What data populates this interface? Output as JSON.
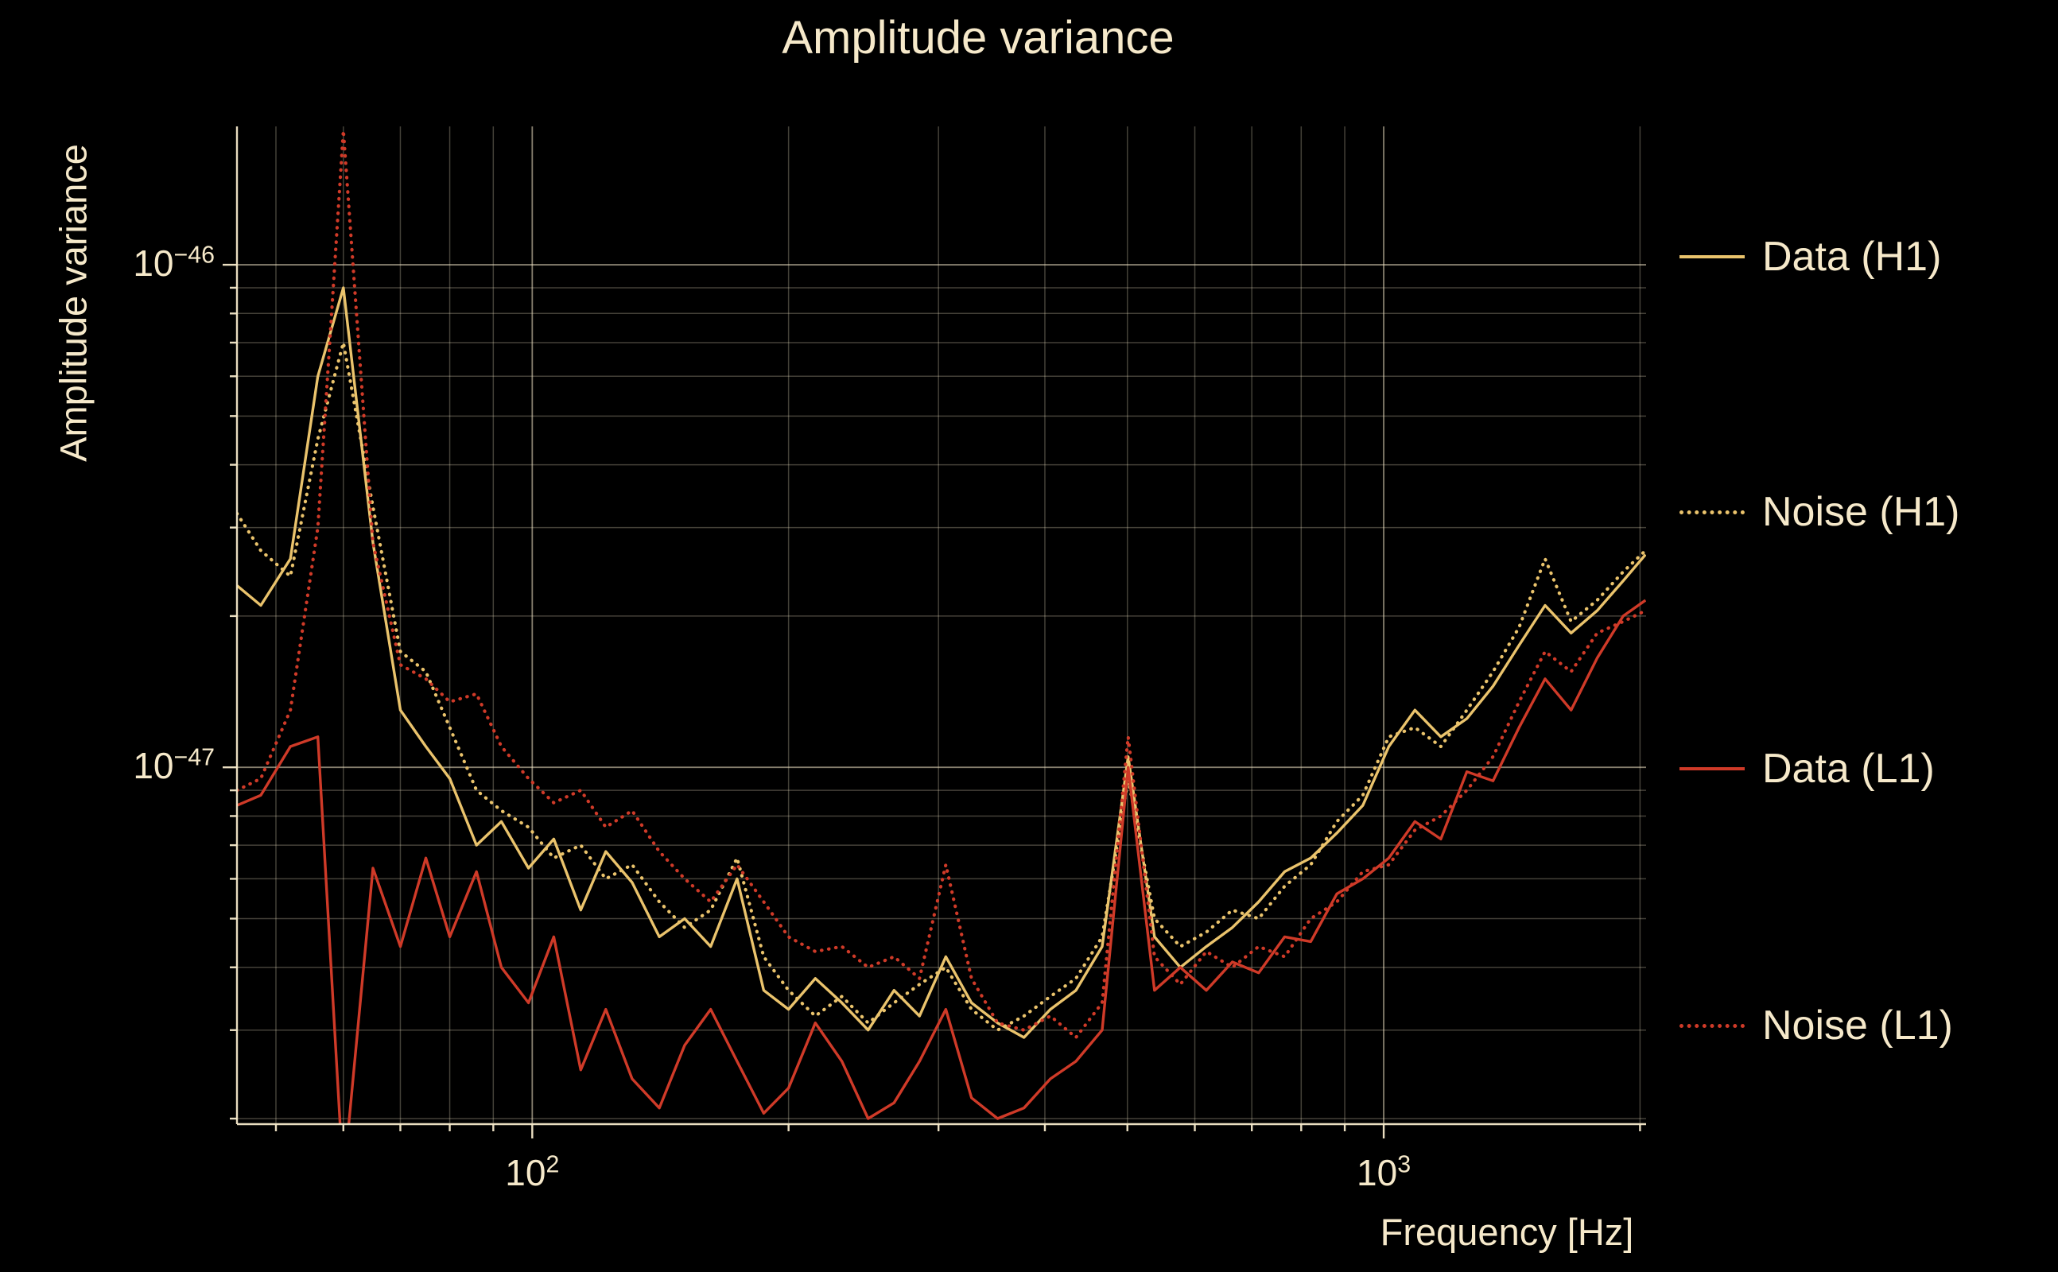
{
  "figure": {
    "title": "Amplitude variance",
    "x_axis_label": "Frequency [Hz]",
    "y_axis_label": "Amplitude variance"
  },
  "colors": {
    "background": "#000000",
    "text": "#f6e9ca",
    "h1": "#eac36c",
    "l1": "#cf3a28"
  },
  "x_ticks": [
    {
      "base": "10",
      "exp": "2",
      "value": 100
    },
    {
      "base": "10",
      "exp": "3",
      "value": 1000
    }
  ],
  "y_ticks": [
    {
      "base": "10",
      "exp": "−46",
      "value": 1e-46
    },
    {
      "base": "10",
      "exp": "−47",
      "value": 1e-47
    }
  ],
  "legend": [
    {
      "label": "Data (H1)",
      "color_key": "h1",
      "style": "solid"
    },
    {
      "label": "Noise (H1)",
      "color_key": "h1",
      "style": "dotted"
    },
    {
      "label": "Data (L1)",
      "color_key": "l1",
      "style": "solid"
    },
    {
      "label": "Noise (L1)",
      "color_key": "l1",
      "style": "dotted"
    }
  ],
  "chart_data": {
    "type": "line",
    "title": "Amplitude variance",
    "xlabel": "Frequency [Hz]",
    "ylabel": "Amplitude variance",
    "x_scale": "log",
    "y_scale": "log",
    "grid": true,
    "legend_position": "right-outside",
    "xlim": [
      45,
      2033
    ],
    "ylim": [
      1.95e-48,
      1.885e-46
    ],
    "x_units": "Hz",
    "value_scale": 1e-48,
    "x": [
      45,
      48,
      52,
      56,
      60,
      65,
      70,
      75,
      80,
      86,
      92,
      99,
      106,
      114,
      122,
      131,
      141,
      151,
      162,
      174,
      187,
      200,
      215,
      231,
      248,
      266,
      285,
      306,
      328,
      352,
      378,
      406,
      435,
      467,
      501,
      538,
      577,
      619,
      664,
      713,
      765,
      821,
      881,
      945,
      1014,
      1088,
      1167,
      1252,
      1344,
      1442,
      1547,
      1660,
      1781,
      1911,
      2030
    ],
    "series": [
      {
        "name": "Data (H1)",
        "style": "solid",
        "color_key": "h1",
        "values": [
          23,
          21,
          26,
          60,
          90,
          28,
          13,
          11,
          9.5,
          7.0,
          7.8,
          6.3,
          7.2,
          5.2,
          6.8,
          5.9,
          4.6,
          5.0,
          4.4,
          6.0,
          3.6,
          3.3,
          3.8,
          3.4,
          3.0,
          3.6,
          3.2,
          4.2,
          3.4,
          3.1,
          2.9,
          3.3,
          3.6,
          4.4,
          10.5,
          4.6,
          4.0,
          4.4,
          4.8,
          5.4,
          6.2,
          6.6,
          7.4,
          8.4,
          11.0,
          13.0,
          11.5,
          12.5,
          14.5,
          17.5,
          21.0,
          18.5,
          20.5,
          23.5,
          26.5
        ]
      },
      {
        "name": "Noise (H1)",
        "style": "dotted",
        "color_key": "h1",
        "values": [
          32,
          27,
          24,
          45,
          70,
          33,
          17,
          15.5,
          12,
          9.0,
          8.2,
          7.6,
          6.6,
          7.0,
          6.0,
          6.4,
          5.4,
          4.8,
          5.2,
          6.6,
          4.2,
          3.6,
          3.2,
          3.5,
          3.1,
          3.4,
          3.7,
          4.0,
          3.3,
          3.0,
          3.2,
          3.5,
          3.8,
          4.6,
          9.5,
          5.0,
          4.4,
          4.7,
          5.2,
          5.0,
          5.8,
          6.4,
          7.8,
          8.8,
          11.5,
          12.0,
          11.0,
          13.0,
          15.5,
          19.0,
          26.0,
          19.5,
          21.5,
          24.5,
          27.0
        ]
      },
      {
        "name": "Data (L1)",
        "style": "solid",
        "color_key": "l1",
        "values": [
          8.4,
          8.8,
          11.0,
          11.5,
          1.5,
          6.3,
          4.4,
          6.6,
          4.6,
          6.2,
          4.0,
          3.4,
          4.6,
          2.5,
          3.3,
          2.4,
          2.1,
          2.8,
          3.3,
          2.6,
          2.05,
          2.3,
          3.1,
          2.6,
          2.0,
          2.15,
          2.6,
          3.3,
          2.2,
          2.0,
          2.1,
          2.4,
          2.6,
          3.0,
          10.0,
          3.6,
          4.0,
          3.6,
          4.1,
          3.9,
          4.6,
          4.5,
          5.6,
          6.0,
          6.6,
          7.8,
          7.2,
          9.8,
          9.4,
          12.0,
          15.0,
          13.0,
          16.5,
          20.0,
          21.5
        ]
      },
      {
        "name": "Noise (L1)",
        "style": "dotted",
        "color_key": "l1",
        "values": [
          9.0,
          9.5,
          13.0,
          30,
          185,
          28,
          16,
          15,
          13.5,
          14.0,
          11.0,
          9.5,
          8.5,
          9.0,
          7.6,
          8.2,
          6.8,
          6.0,
          5.4,
          6.4,
          5.4,
          4.6,
          4.3,
          4.4,
          4.0,
          4.2,
          3.8,
          6.4,
          3.8,
          3.1,
          3.0,
          3.2,
          2.9,
          3.4,
          11.5,
          4.2,
          3.7,
          4.3,
          4.0,
          4.4,
          4.2,
          5.0,
          5.4,
          6.2,
          6.4,
          7.5,
          8.0,
          9.0,
          10.5,
          13.5,
          17.0,
          15.5,
          18.5,
          19.5,
          20.5
        ]
      }
    ]
  }
}
